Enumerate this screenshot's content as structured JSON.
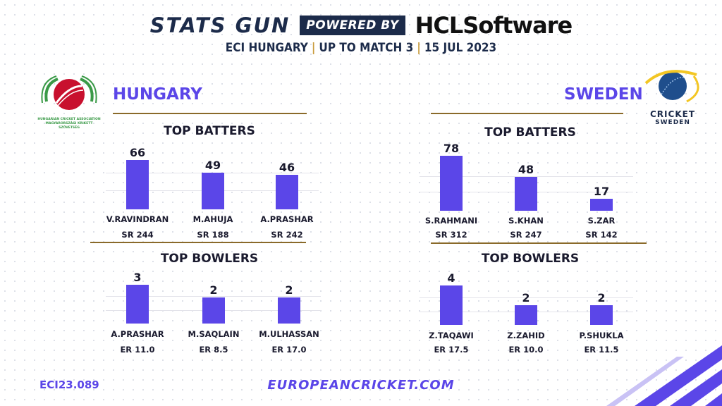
{
  "header": {
    "brand": "STATS GUN",
    "powered_by": "POWERED BY",
    "sponsor": "HCLSoftware",
    "subtitle_parts": [
      "ECI HUNGARY",
      "UP TO MATCH 3",
      "15 JUL 2023"
    ]
  },
  "colors": {
    "accent": "#5b46e8",
    "navy": "#1c2b4a",
    "gold": "#c89b3c",
    "hungary_red": "#c8102e",
    "hungary_green": "#3a9a47"
  },
  "footer": {
    "code": "ECI23.089",
    "url": "EUROPEANCRICKET.COM"
  },
  "logos": {
    "hungary": {
      "icon": "hungarian-cricket-association-logo",
      "caption_line1": "HUNGARIAN CRICKET ASSOCIATION",
      "caption_line2": "MAGYARORSZÁGI KRIKETT SZÖVETSÉG"
    },
    "sweden": {
      "icon": "cricket-sweden-logo",
      "line1": "CRICKET",
      "line2": "SWEDEN"
    }
  },
  "chart_data": [
    {
      "type": "bar",
      "team": "HUNGARY",
      "title": "TOP BATTERS",
      "categories": [
        "V.RAVINDRAN",
        "M.AHUJA",
        "A.PRASHAR"
      ],
      "values": [
        66,
        49,
        46
      ],
      "stats": [
        "SR 244",
        "SR 188",
        "SR 242"
      ]
    },
    {
      "type": "bar",
      "team": "HUNGARY",
      "title": "TOP BOWLERS",
      "categories": [
        "A.PRASHAR",
        "M.SAQLAIN",
        "M.ULHASSAN"
      ],
      "values": [
        3,
        2,
        2
      ],
      "stats": [
        "ER 11.0",
        "ER 8.5",
        "ER 17.0"
      ]
    },
    {
      "type": "bar",
      "team": "SWEDEN",
      "title": "TOP BATTERS",
      "categories": [
        "S.RAHMANI",
        "S.KHAN",
        "S.ZAR"
      ],
      "values": [
        78,
        48,
        17
      ],
      "stats": [
        "SR 312",
        "SR 247",
        "SR 142"
      ]
    },
    {
      "type": "bar",
      "team": "SWEDEN",
      "title": "TOP BOWLERS",
      "categories": [
        "Z.TAQAWI",
        "Z.ZAHID",
        "P.SHUKLA"
      ],
      "values": [
        4,
        2,
        2
      ],
      "stats": [
        "ER 17.5",
        "ER 10.0",
        "ER 11.5"
      ]
    }
  ]
}
